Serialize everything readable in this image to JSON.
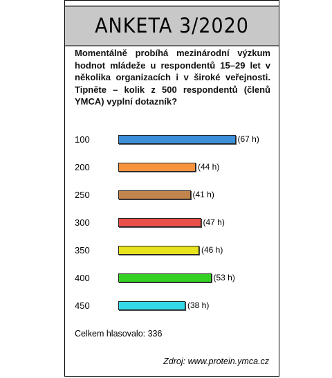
{
  "title": "ANKETA 3/2020",
  "question": "Momentálně probíhá mezinárodní výzkum hodnot mládeže u respondentů 15–29 let v několika organizacích i v široké veřejnosti. Tipněte – kolik z 500 respondentů (členů YMCA) vyplní dotazník?",
  "chart_data": {
    "type": "bar",
    "orientation": "horizontal",
    "categories": [
      "100",
      "200",
      "250",
      "300",
      "350",
      "400",
      "450"
    ],
    "values": [
      67,
      44,
      41,
      47,
      46,
      53,
      38
    ],
    "value_labels": [
      "(67 h)",
      "(44 h)",
      "(41 h)",
      "(47 h)",
      "(46 h)",
      "(53 h)",
      "(38 h)"
    ],
    "colors": [
      "#3b8ed8",
      "#f7923f",
      "#c0844c",
      "#e9504a",
      "#e6e21e",
      "#35d024",
      "#33d9e8"
    ]
  },
  "total": "Celkem hlasovalo: 336",
  "source": "Zdroj: www.protein.ymca.cz"
}
